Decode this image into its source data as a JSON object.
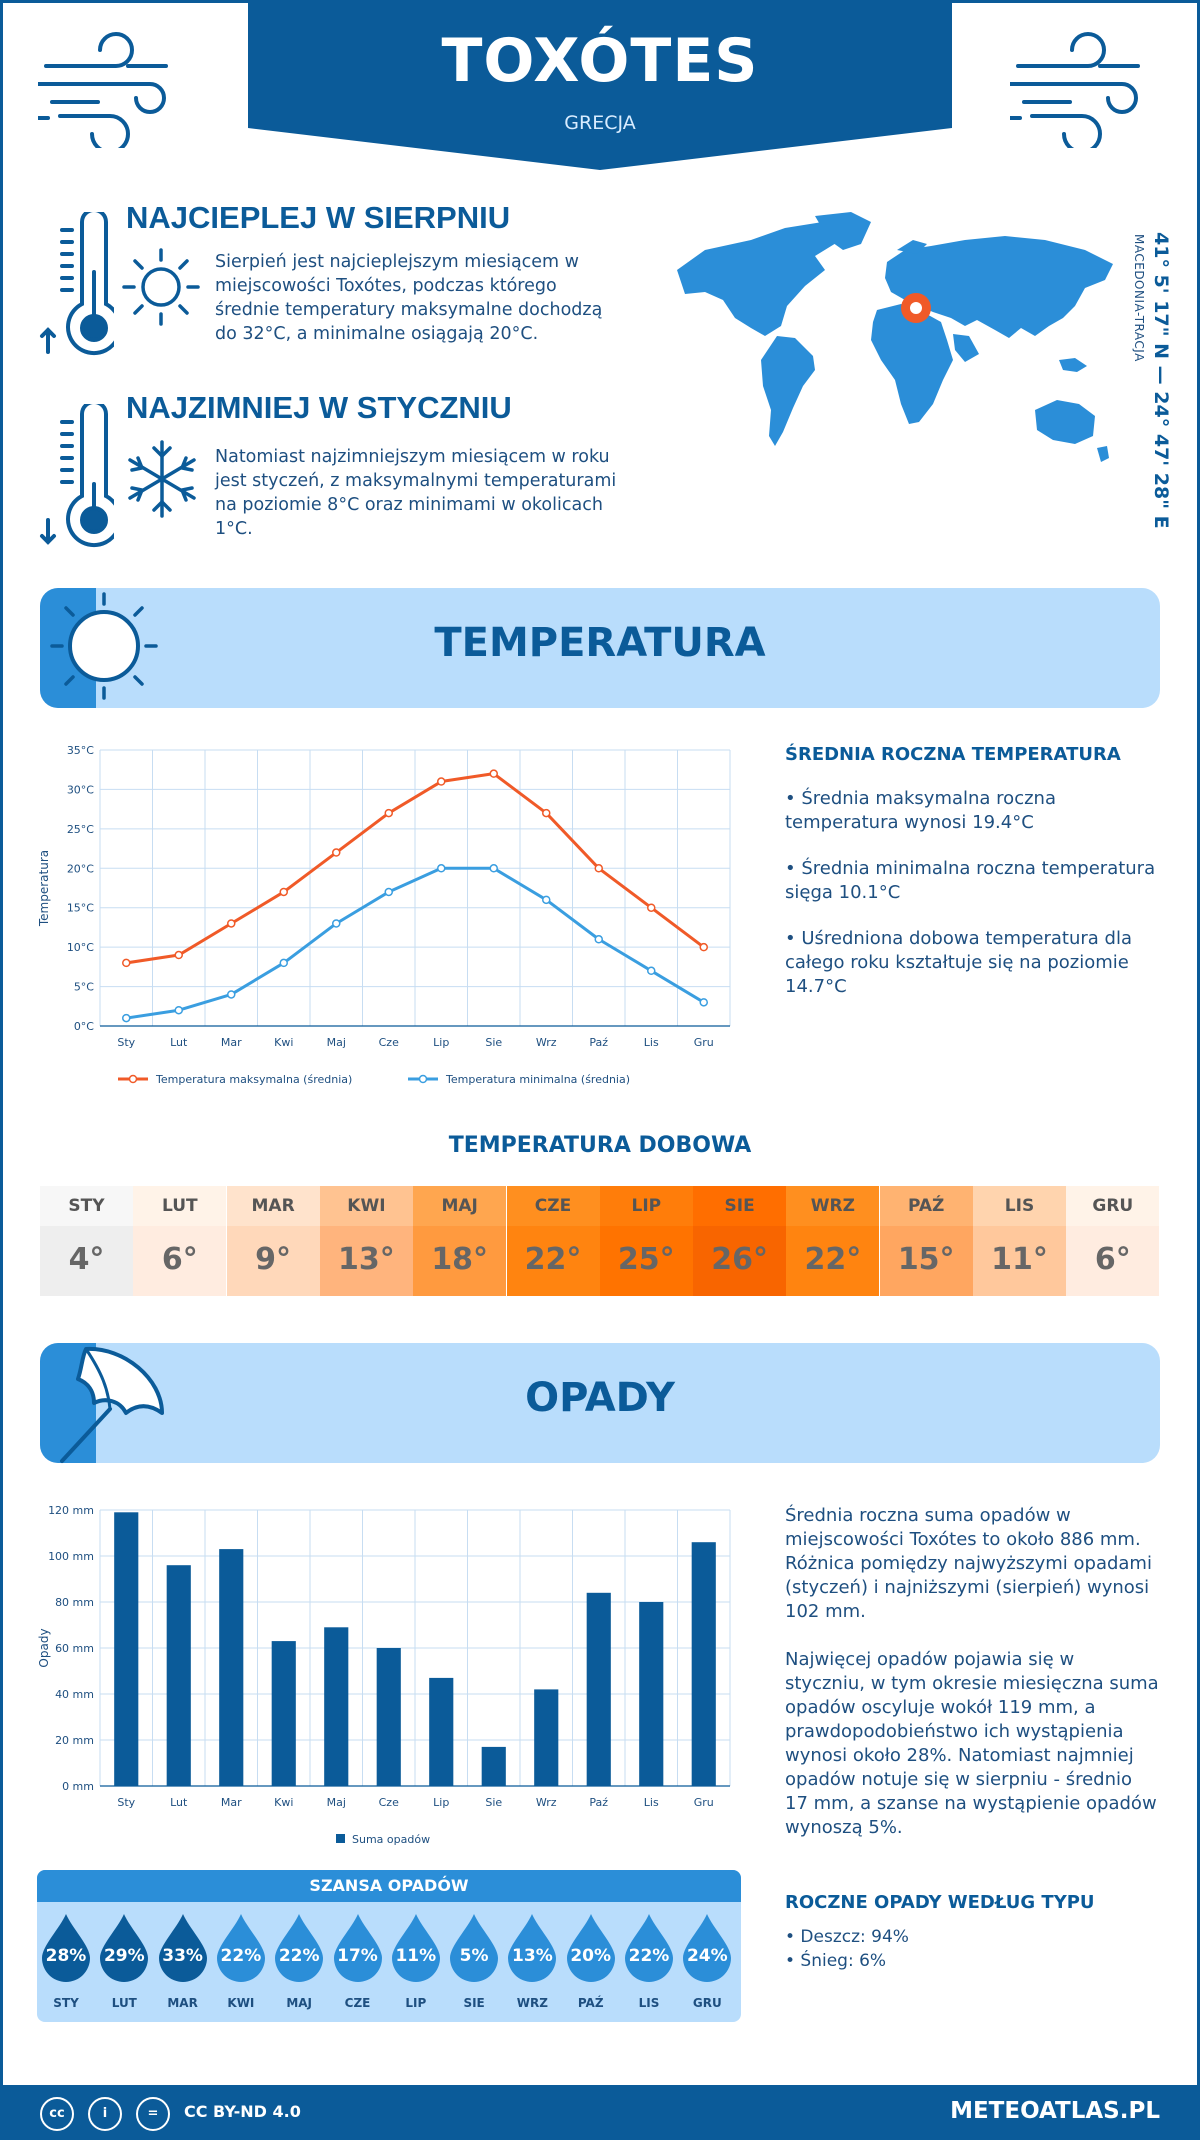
{
  "header": {
    "title": "TOXÓTES",
    "country": "GRECJA"
  },
  "hot": {
    "heading": "NAJCIEPLEJ W SIERPNIU",
    "lines": [
      "Sierpień jest najcieplejszym miesiącem w",
      "miejscowości Toxótes, podczas którego",
      "średnie temperatury maksymalne dochodzą",
      "do 32°C, a minimalne osiągają 20°C."
    ]
  },
  "cold": {
    "heading": "NAJZIMNIEJ W STYCZNIU",
    "lines": [
      "Natomiast najzimniejszym miesiącem w roku",
      "jest styczeń, z maksymalnymi temperaturami",
      "na poziomie 8°C oraz minimami w okolicach",
      "1°C."
    ]
  },
  "location": {
    "coords": "41° 5' 17\" N — 24° 47' 28\" E",
    "region": "MACEDONIA-TRACJA"
  },
  "temperature_section": {
    "title": "TEMPERATURA"
  },
  "chart_data": [
    {
      "type": "line",
      "categories": [
        "Sty",
        "Lut",
        "Mar",
        "Kwi",
        "Maj",
        "Cze",
        "Lip",
        "Sie",
        "Wrz",
        "Paź",
        "Lis",
        "Gru"
      ],
      "series": [
        {
          "name": "Temperatura maksymalna (średnia)",
          "color": "#f05a28",
          "values": [
            8,
            9,
            13,
            17,
            22,
            27,
            31,
            32,
            27,
            20,
            15,
            10
          ]
        },
        {
          "name": "Temperatura minimalna (średnia)",
          "color": "#3a9ee0",
          "values": [
            1,
            2,
            4,
            8,
            13,
            17,
            20,
            20,
            16,
            11,
            7,
            3
          ]
        }
      ],
      "ylabel": "Temperatura",
      "ylim": [
        0,
        35
      ],
      "yticks": [
        "0°C",
        "5°C",
        "10°C",
        "15°C",
        "20°C",
        "25°C",
        "30°C",
        "35°C"
      ],
      "grid": true,
      "legend": "bottom"
    },
    {
      "type": "bar",
      "categories": [
        "Sty",
        "Lut",
        "Mar",
        "Kwi",
        "Maj",
        "Cze",
        "Lip",
        "Sie",
        "Wrz",
        "Paź",
        "Lis",
        "Gru"
      ],
      "series": [
        {
          "name": "Suma opadów",
          "color": "#0b5b99",
          "values": [
            119,
            96,
            103,
            63,
            69,
            60,
            47,
            17,
            42,
            84,
            80,
            106
          ]
        }
      ],
      "ylabel": "Opady",
      "ylim": [
        0,
        120
      ],
      "yticks": [
        "0 mm",
        "20 mm",
        "40 mm",
        "60 mm",
        "80 mm",
        "100 mm",
        "120 mm"
      ],
      "grid": true,
      "legend": "bottom"
    }
  ],
  "temp_summary": {
    "heading": "ŚREDNIA ROCZNA TEMPERATURA",
    "p1": [
      "• Średnia maksymalna roczna",
      "temperatura wynosi 19.4°C"
    ],
    "p2": [
      "• Średnia minimalna roczna temperatura",
      "sięga 10.1°C"
    ],
    "p3": [
      "• Uśredniona dobowa temperatura dla",
      "całego roku kształtuje się na poziomie",
      "14.7°C"
    ]
  },
  "daily": {
    "title": "TEMPERATURA DOBOWA",
    "months": [
      "STY",
      "LUT",
      "MAR",
      "KWI",
      "MAJ",
      "CZE",
      "LIP",
      "SIE",
      "WRZ",
      "PAŹ",
      "LIS",
      "GRU"
    ],
    "values": [
      "4°",
      "6°",
      "9°",
      "13°",
      "18°",
      "22°",
      "25°",
      "26°",
      "22°",
      "15°",
      "11°",
      "6°"
    ],
    "colors_top": [
      "#f7f7f7",
      "#fff3e8",
      "#ffe3cc",
      "#ffc391",
      "#ffa64f",
      "#ff8f1f",
      "#ff7d0a",
      "#ff6e00",
      "#ff8f1f",
      "#ffb371",
      "#ffd4ae",
      "#fff3e8"
    ],
    "colors_bottom": [
      "#eeeeee",
      "#ffece0",
      "#ffd8ba",
      "#ffb47d",
      "#ff9a3f",
      "#ff8410",
      "#ff7300",
      "#f86500",
      "#ff8410",
      "#ffa660",
      "#ffc89c",
      "#ffece0"
    ]
  },
  "precip_section": {
    "title": "OPADY"
  },
  "precip_summary": {
    "p1": [
      "Średnia roczna suma opadów w",
      "miejscowości Toxótes to około 886 mm.",
      "Różnica pomiędzy najwyższymi opadami",
      "(styczeń) i najniższymi (sierpień) wynosi",
      "102 mm."
    ],
    "p2": [
      "Najwięcej opadów pojawia się w",
      "styczniu, w tym okresie miesięczna suma",
      "opadów oscyluje wokół 119 mm, a",
      "prawdopodobieństwo ich wystąpienia",
      "wynosi około 28%. Natomiast najmniej",
      "opadów notuje się w sierpniu - średnio",
      "17 mm, a szanse na wystąpienie opadów",
      "wynoszą 5%."
    ]
  },
  "chance": {
    "title": "SZANSA OPADÓW",
    "months": [
      "STY",
      "LUT",
      "MAR",
      "KWI",
      "MAJ",
      "CZE",
      "LIP",
      "SIE",
      "WRZ",
      "PAŹ",
      "LIS",
      "GRU"
    ],
    "values": [
      "28%",
      "29%",
      "33%",
      "22%",
      "22%",
      "17%",
      "11%",
      "5%",
      "13%",
      "20%",
      "22%",
      "24%"
    ],
    "dark_color": "#0b5b99",
    "light_color": "#2b8ed8"
  },
  "types": {
    "heading": "ROCZNE OPADY WEDŁUG TYPU",
    "rain": "• Deszcz: 94%",
    "snow": "• Śnieg: 6%"
  },
  "footer": {
    "license": "CC BY-ND 4.0",
    "site": "METEOATLAS.PL",
    "cc1": "cc",
    "cc2": "i",
    "cc3": "="
  }
}
